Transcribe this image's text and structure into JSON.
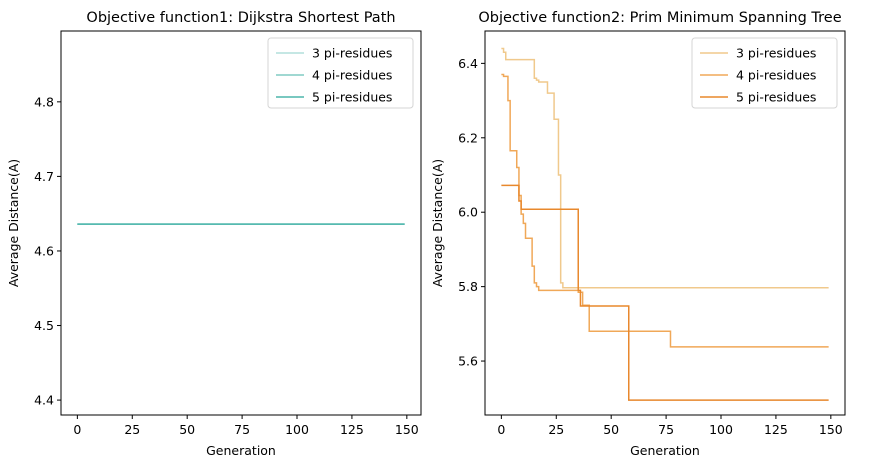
{
  "chart_data": [
    {
      "type": "line",
      "title": "Objective function1: Dijkstra Shortest Path",
      "xlabel": "Generation",
      "ylabel": "Average Distance(A)",
      "xlim": [
        -7.45,
        156.45
      ],
      "ylim": [
        4.38,
        4.895
      ],
      "xticks": [
        0,
        25,
        50,
        75,
        100,
        125,
        150
      ],
      "yticks": [
        4.4,
        4.5,
        4.6,
        4.7,
        4.8
      ],
      "xtick_labels": [
        "0",
        "25",
        "50",
        "75",
        "100",
        "125",
        "150"
      ],
      "ytick_labels": [
        "4.4",
        "4.5",
        "4.6",
        "4.7",
        "4.8"
      ],
      "legend_position": "top-right",
      "grid": false,
      "series": [
        {
          "name": "3 pi-residues",
          "color": "#b2dfdb",
          "x": [
            0,
            149
          ],
          "y": [
            4.636,
            4.636
          ]
        },
        {
          "name": "4 pi-residues",
          "color": "#80cbc4",
          "x": [
            0,
            149
          ],
          "y": [
            4.636,
            4.636
          ]
        },
        {
          "name": "5 pi-residues",
          "color": "#4db6ac",
          "x": [
            0,
            149
          ],
          "y": [
            4.636,
            4.636
          ]
        }
      ]
    },
    {
      "type": "line",
      "title": "Objective function2: Prim Minimum Spanning Tree",
      "xlabel": "Generation",
      "ylabel": "Average Distance(A)",
      "xlim": [
        -7.45,
        156.45
      ],
      "ylim": [
        5.455,
        6.487
      ],
      "xticks": [
        0,
        25,
        50,
        75,
        100,
        125,
        150
      ],
      "yticks": [
        5.6,
        5.8,
        6.0,
        6.2,
        6.4
      ],
      "xtick_labels": [
        "0",
        "25",
        "50",
        "75",
        "100",
        "125",
        "150"
      ],
      "ytick_labels": [
        "5.6",
        "5.8",
        "6.0",
        "6.2",
        "6.4"
      ],
      "legend_position": "top-right",
      "grid": false,
      "series": [
        {
          "name": "3 pi-residues",
          "color": "#f0c98c",
          "x": [
            0,
            1,
            1,
            2,
            2,
            15,
            15,
            16,
            16,
            17,
            17,
            21,
            21,
            24,
            24,
            25,
            25,
            26,
            26,
            27,
            27,
            28,
            28,
            149
          ],
          "y": [
            6.44,
            6.44,
            6.43,
            6.43,
            6.41,
            6.41,
            6.36,
            6.36,
            6.355,
            6.355,
            6.35,
            6.35,
            6.32,
            6.32,
            6.25,
            6.25,
            6.25,
            6.25,
            6.1,
            6.1,
            5.81,
            5.81,
            5.797,
            5.797
          ]
        },
        {
          "name": "4 pi-residues",
          "color": "#f0a858",
          "x": [
            0,
            1,
            1,
            3,
            3,
            4,
            4,
            7,
            7,
            8,
            8,
            9,
            9,
            10,
            10,
            11,
            11,
            12,
            12,
            14,
            14,
            15,
            15,
            16,
            16,
            17,
            17,
            18,
            18,
            35,
            35,
            37,
            37,
            40,
            40,
            77,
            77,
            149
          ],
          "y": [
            6.37,
            6.37,
            6.365,
            6.365,
            6.3,
            6.3,
            6.165,
            6.165,
            6.12,
            6.12,
            6.045,
            6.045,
            5.995,
            5.995,
            5.97,
            5.97,
            5.93,
            5.93,
            5.93,
            5.93,
            5.855,
            5.855,
            5.81,
            5.81,
            5.8,
            5.8,
            5.79,
            5.79,
            5.79,
            5.79,
            5.785,
            5.785,
            5.75,
            5.75,
            5.68,
            5.68,
            5.638,
            5.638
          ]
        },
        {
          "name": "5 pi-residues",
          "color": "#e8882c",
          "x": [
            0,
            8,
            8,
            9,
            9,
            35,
            35,
            36,
            36,
            58,
            58,
            149
          ],
          "y": [
            6.072,
            6.072,
            6.03,
            6.03,
            6.008,
            6.008,
            5.79,
            5.79,
            5.748,
            5.748,
            5.495,
            5.495
          ]
        }
      ]
    }
  ]
}
